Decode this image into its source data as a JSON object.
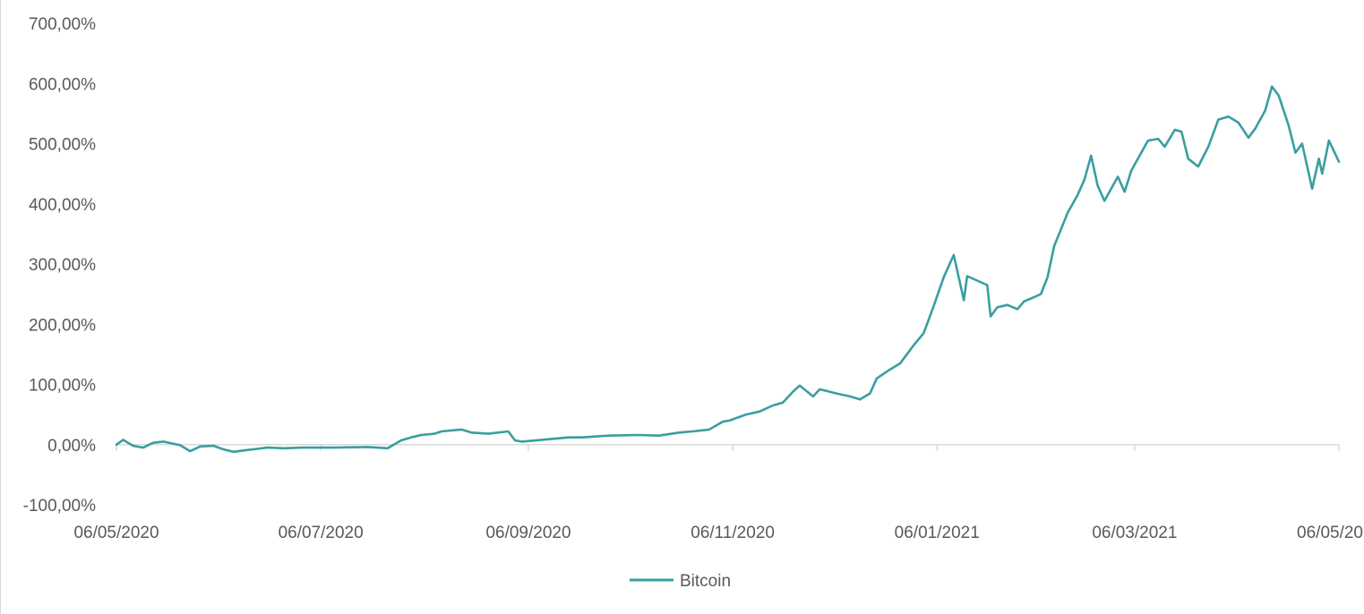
{
  "chart_data": {
    "type": "line",
    "title": "",
    "xlabel": "",
    "ylabel": "",
    "ylim": [
      -100,
      700
    ],
    "y_ticks": [
      -100,
      0,
      100,
      200,
      300,
      400,
      500,
      600,
      700
    ],
    "y_tick_labels": [
      "-100,00%",
      "0,00%",
      "100,00%",
      "200,00%",
      "300,00%",
      "400,00%",
      "500,00%",
      "600,00%",
      "700,00%"
    ],
    "xlim": [
      "06/05/2020",
      "06/05/2021"
    ],
    "x_ticks": [
      "06/05/2020",
      "06/07/2020",
      "06/09/2020",
      "06/11/2020",
      "06/01/2021",
      "06/03/2021",
      "06/05/2021"
    ],
    "x_tick_labels": [
      "06/05/2020",
      "06/07/2020",
      "06/09/2020",
      "06/11/2020",
      "06/01/2021",
      "06/03/2021",
      "06/05/20"
    ],
    "grid": false,
    "legend": "bottom",
    "series": [
      {
        "name": "Bitcoin",
        "color": "#3a9ea0",
        "x": [
          "06/05/2020",
          "08/05/2020",
          "11/05/2020",
          "14/05/2020",
          "17/05/2020",
          "20/05/2020",
          "25/05/2020",
          "28/05/2020",
          "31/05/2020",
          "04/06/2020",
          "07/06/2020",
          "10/06/2020",
          "14/06/2020",
          "17/06/2020",
          "20/06/2020",
          "25/06/2020",
          "01/07/2020",
          "10/07/2020",
          "20/07/2020",
          "26/07/2020",
          "30/07/2020",
          "02/08/2020",
          "05/08/2020",
          "09/08/2020",
          "11/08/2020",
          "17/08/2020",
          "20/08/2020",
          "25/08/2020",
          "31/08/2020",
          "02/09/2020",
          "04/09/2020",
          "10/09/2020",
          "18/09/2020",
          "22/09/2020",
          "30/09/2020",
          "09/10/2020",
          "15/10/2020",
          "21/10/2020",
          "25/10/2020",
          "30/10/2020",
          "03/11/2020",
          "05/11/2020",
          "10/11/2020",
          "14/11/2020",
          "18/11/2020",
          "21/11/2020",
          "24/11/2020",
          "26/11/2020",
          "30/11/2020",
          "02/12/2020",
          "07/12/2020",
          "11/12/2020",
          "14/12/2020",
          "17/12/2020",
          "19/12/2020",
          "23/12/2020",
          "26/12/2020",
          "30/12/2020",
          "02/01/2021",
          "05/01/2021",
          "08/01/2021",
          "11/01/2021",
          "14/01/2021",
          "15/01/2021",
          "21/01/2021",
          "22/01/2021",
          "24/01/2021",
          "27/01/2021",
          "30/01/2021",
          "01/02/2021",
          "04/02/2021",
          "06/02/2021",
          "08/02/2021",
          "10/02/2021",
          "14/02/2021",
          "17/02/2021",
          "19/02/2021",
          "21/02/2021",
          "23/02/2021",
          "25/02/2021",
          "27/02/2021",
          "01/03/2021",
          "03/03/2021",
          "05/03/2021",
          "10/03/2021",
          "13/03/2021",
          "15/03/2021",
          "18/03/2021",
          "20/03/2021",
          "22/03/2021",
          "25/03/2021",
          "28/03/2021",
          "31/03/2021",
          "03/04/2021",
          "06/04/2021",
          "09/04/2021",
          "11/04/2021",
          "14/04/2021",
          "16/04/2021",
          "18/04/2021",
          "21/04/2021",
          "23/04/2021",
          "25/04/2021",
          "28/04/2021",
          "30/04/2021",
          "01/05/2021",
          "03/05/2021",
          "06/05/2021"
        ],
        "values": [
          0,
          8,
          -2,
          -5,
          3,
          5,
          -1,
          -11,
          -3,
          -2,
          -8,
          -12,
          -9,
          -7,
          -5,
          -6,
          -5,
          -5,
          -4,
          -6,
          7,
          12,
          16,
          18,
          22,
          25,
          20,
          18,
          22,
          7,
          5,
          8,
          12,
          12,
          15,
          16,
          15,
          20,
          22,
          25,
          38,
          40,
          50,
          55,
          65,
          70,
          88,
          98,
          80,
          92,
          85,
          80,
          75,
          85,
          110,
          125,
          135,
          165,
          185,
          230,
          278,
          315,
          240,
          280,
          265,
          213,
          228,
          232,
          225,
          238,
          245,
          250,
          278,
          330,
          385,
          415,
          440,
          480,
          430,
          405,
          425,
          445,
          420,
          455,
          505,
          508,
          495,
          523,
          520,
          475,
          462,
          495,
          540,
          545,
          535,
          510,
          525,
          555,
          595,
          580,
          530,
          485,
          500,
          425,
          475,
          450,
          505,
          470
        ]
      }
    ]
  }
}
